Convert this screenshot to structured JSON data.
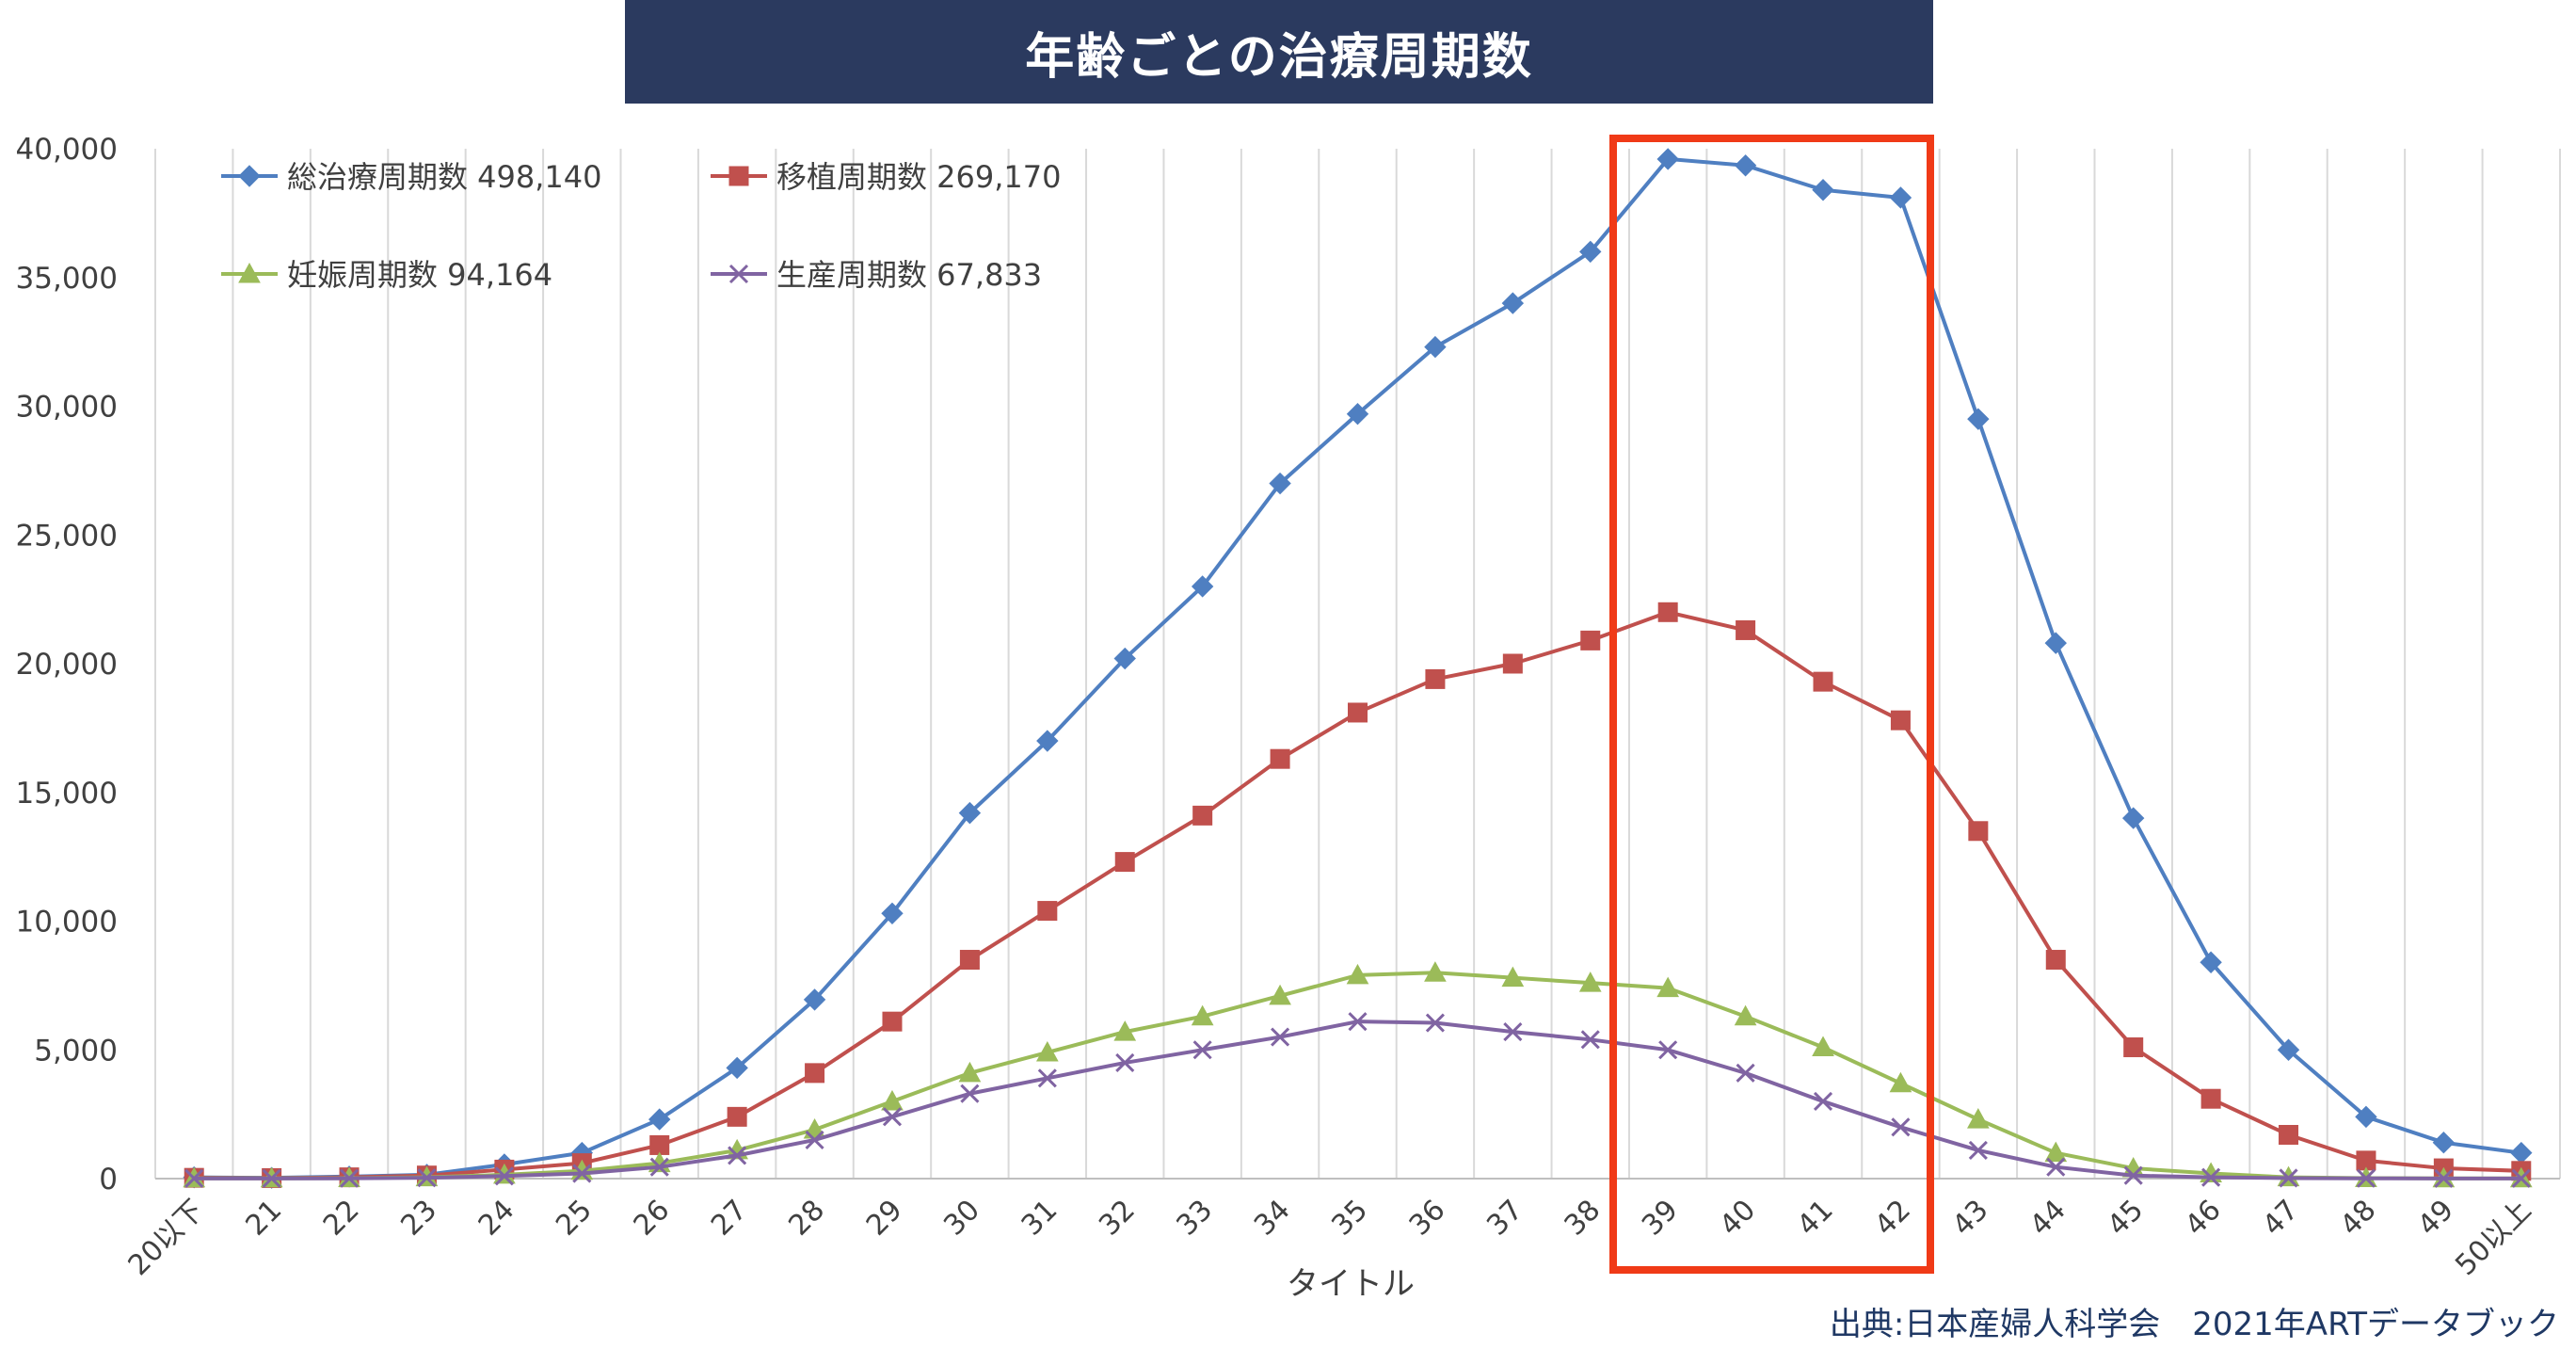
{
  "title": "年齢ごとの治療周期数",
  "source": "出典:日本産婦人科学会　2021年ARTデータブック",
  "chart_data": {
    "type": "line",
    "title": "年齢ごとの治療周期数",
    "xlabel": "タイトル",
    "ylabel": "",
    "ylim": [
      0,
      40000
    ],
    "yticks": [
      "0",
      "5,000",
      "10,000",
      "15,000",
      "20,000",
      "25,000",
      "30,000",
      "35,000",
      "40,000"
    ],
    "categories": [
      "20以下",
      "21",
      "22",
      "23",
      "24",
      "25",
      "26",
      "27",
      "28",
      "29",
      "30",
      "31",
      "32",
      "33",
      "34",
      "35",
      "36",
      "37",
      "38",
      "39",
      "40",
      "41",
      "42",
      "43",
      "44",
      "45",
      "46",
      "47",
      "48",
      "49",
      "50以上"
    ],
    "grid": "vertical",
    "legend": "top-left",
    "highlight_range": [
      "39",
      "42"
    ],
    "series": [
      {
        "name": "総治療周期数 498,140",
        "color": "#4f7fc1",
        "marker": "diamond",
        "values": [
          50,
          30,
          80,
          150,
          550,
          1000,
          2300,
          4300,
          6950,
          10300,
          14200,
          17000,
          20200,
          23000,
          27000,
          29700,
          32300,
          34000,
          36000,
          39600,
          39350,
          38400,
          38100,
          29500,
          20800,
          14000,
          8400,
          5000,
          2400,
          1400,
          1000
        ]
      },
      {
        "name": "移植周期数 269,170",
        "color": "#c0504d",
        "marker": "square",
        "values": [
          30,
          20,
          50,
          120,
          350,
          600,
          1300,
          2400,
          4100,
          6100,
          8500,
          10400,
          12300,
          14100,
          16300,
          18100,
          19400,
          20000,
          20900,
          22000,
          21300,
          19300,
          17800,
          13500,
          8500,
          5100,
          3100,
          1700,
          700,
          400,
          300
        ]
      },
      {
        "name": "妊娠周期数 94,164",
        "color": "#9bbb59",
        "marker": "triangle",
        "values": [
          10,
          10,
          20,
          50,
          150,
          300,
          600,
          1100,
          1900,
          3000,
          4100,
          4900,
          5700,
          6300,
          7100,
          7900,
          8000,
          7800,
          7600,
          7400,
          6300,
          5100,
          3700,
          2300,
          1000,
          400,
          200,
          50,
          20,
          10,
          10
        ]
      },
      {
        "name": "生産周期数 67,833",
        "color": "#8064a2",
        "marker": "x",
        "values": [
          5,
          5,
          10,
          30,
          100,
          200,
          450,
          900,
          1500,
          2400,
          3300,
          3900,
          4500,
          5000,
          5500,
          6100,
          6050,
          5700,
          5400,
          5000,
          4100,
          3000,
          2000,
          1100,
          450,
          120,
          50,
          20,
          10,
          5,
          5
        ]
      }
    ]
  }
}
